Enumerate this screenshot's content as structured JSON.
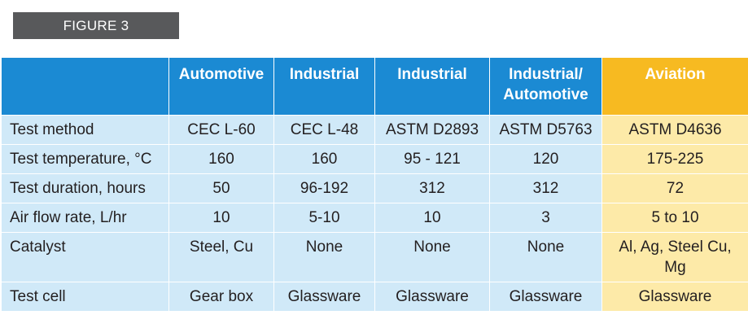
{
  "figure_label": "FIGURE 3",
  "table": {
    "headers": [
      "",
      "Automotive",
      "Industrial",
      "Industrial",
      "Industrial/\nAutomotive",
      "Aviation"
    ],
    "rows": [
      [
        "Test method",
        "CEC L-60",
        "CEC L-48",
        "ASTM D2893",
        "ASTM D5763",
        "ASTM D4636"
      ],
      [
        "Test temperature, °C",
        "160",
        "160",
        "95 - 121",
        "120",
        "175-225"
      ],
      [
        "Test duration, hours",
        "50",
        "96-192",
        "312",
        "312",
        "72"
      ],
      [
        "Air flow rate, L/hr",
        "10",
        "5-10",
        "10",
        "3",
        "5 to 10"
      ],
      [
        "Catalyst",
        "Steel, Cu",
        "None",
        "None",
        "None",
        "Al, Ag, Steel Cu,\nMg"
      ],
      [
        "Test cell",
        "Gear box",
        "Glassware",
        "Glassware",
        "Glassware",
        "Glassware"
      ]
    ]
  },
  "colors": {
    "header_blue": "#1b8ad3",
    "header_gold": "#f7ba21",
    "body_blue": "#d0e9f8",
    "body_gold": "#fdeaa8",
    "label_gray": "#58595b"
  }
}
